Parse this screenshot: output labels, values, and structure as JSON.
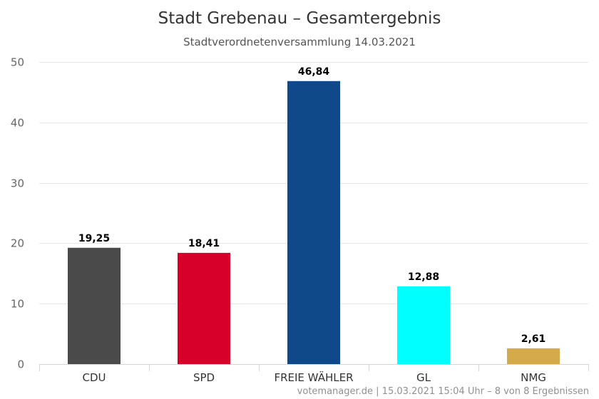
{
  "chart_data": {
    "type": "bar",
    "title": "Stadt Grebenau – Gesamtergebnis",
    "subtitle": "Stadtverordnetenversammlung 14.03.2021",
    "categories": [
      "CDU",
      "SPD",
      "FREIE WÄHLER",
      "GL",
      "NMG"
    ],
    "values": [
      19.25,
      18.41,
      46.84,
      12.88,
      2.61
    ],
    "value_labels": [
      "19,25",
      "18,41",
      "46,84",
      "12,88",
      "2,61"
    ],
    "colors": [
      "#4a4a4a",
      "#d6002a",
      "#10498a",
      "#00ffff",
      "#d4aa4a"
    ],
    "ylim": [
      0,
      50
    ],
    "yticks": [
      0,
      10,
      20,
      30,
      40,
      50
    ],
    "grid": true,
    "legend": "none",
    "credit": "votemanager.de | 15.03.2021 15:04 Uhr – 8 von 8 Ergebnissen"
  }
}
